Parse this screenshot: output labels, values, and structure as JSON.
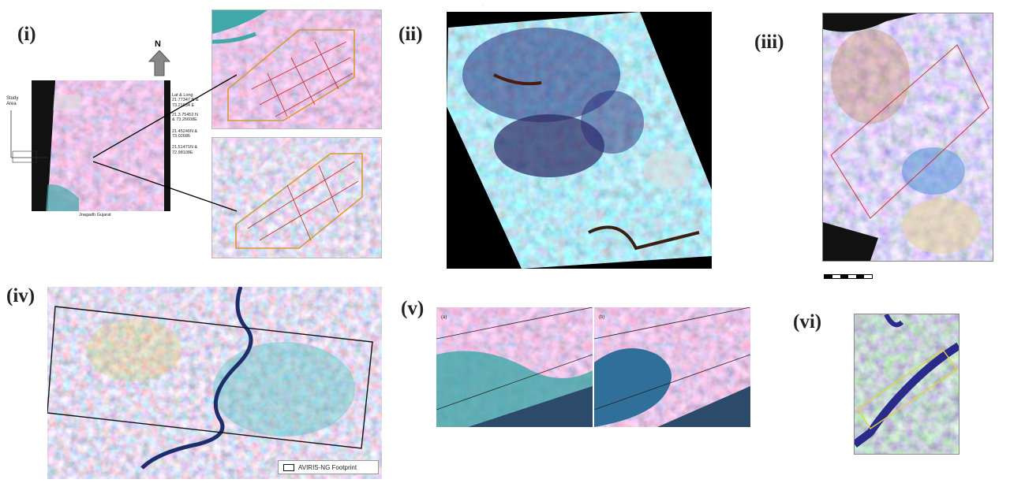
{
  "panels": {
    "i": {
      "label": "(i)",
      "north": "N",
      "study_area": "Study\nArea",
      "caption": "Jnagadh Gujarat",
      "coords": [
        "Lat & Long\n21.77347 N &\n73.21934 E",
        "21.3.75452 N\n& 73.26608E",
        "21.45246N &\n73.02686",
        "21.51471N &\n72.98108E"
      ]
    },
    "ii": {
      "label": "(ii)"
    },
    "iii": {
      "label": "(iii)"
    },
    "iv": {
      "label": "(iv)",
      "legend": "AVIRIS-NG Footprint"
    },
    "v": {
      "label": "(v)",
      "sub_a": "(a)",
      "sub_b": "(b)"
    },
    "vi": {
      "label": "(vi)"
    }
  },
  "colors": {
    "vegetation_red": "#b8485a",
    "water_cyan": "#3fa8a8",
    "footprint_orange": "#d99a3a",
    "footprint_yellow": "#e6d23a",
    "river_dark": "#1e2e6a",
    "nodata_black": "#111111"
  }
}
